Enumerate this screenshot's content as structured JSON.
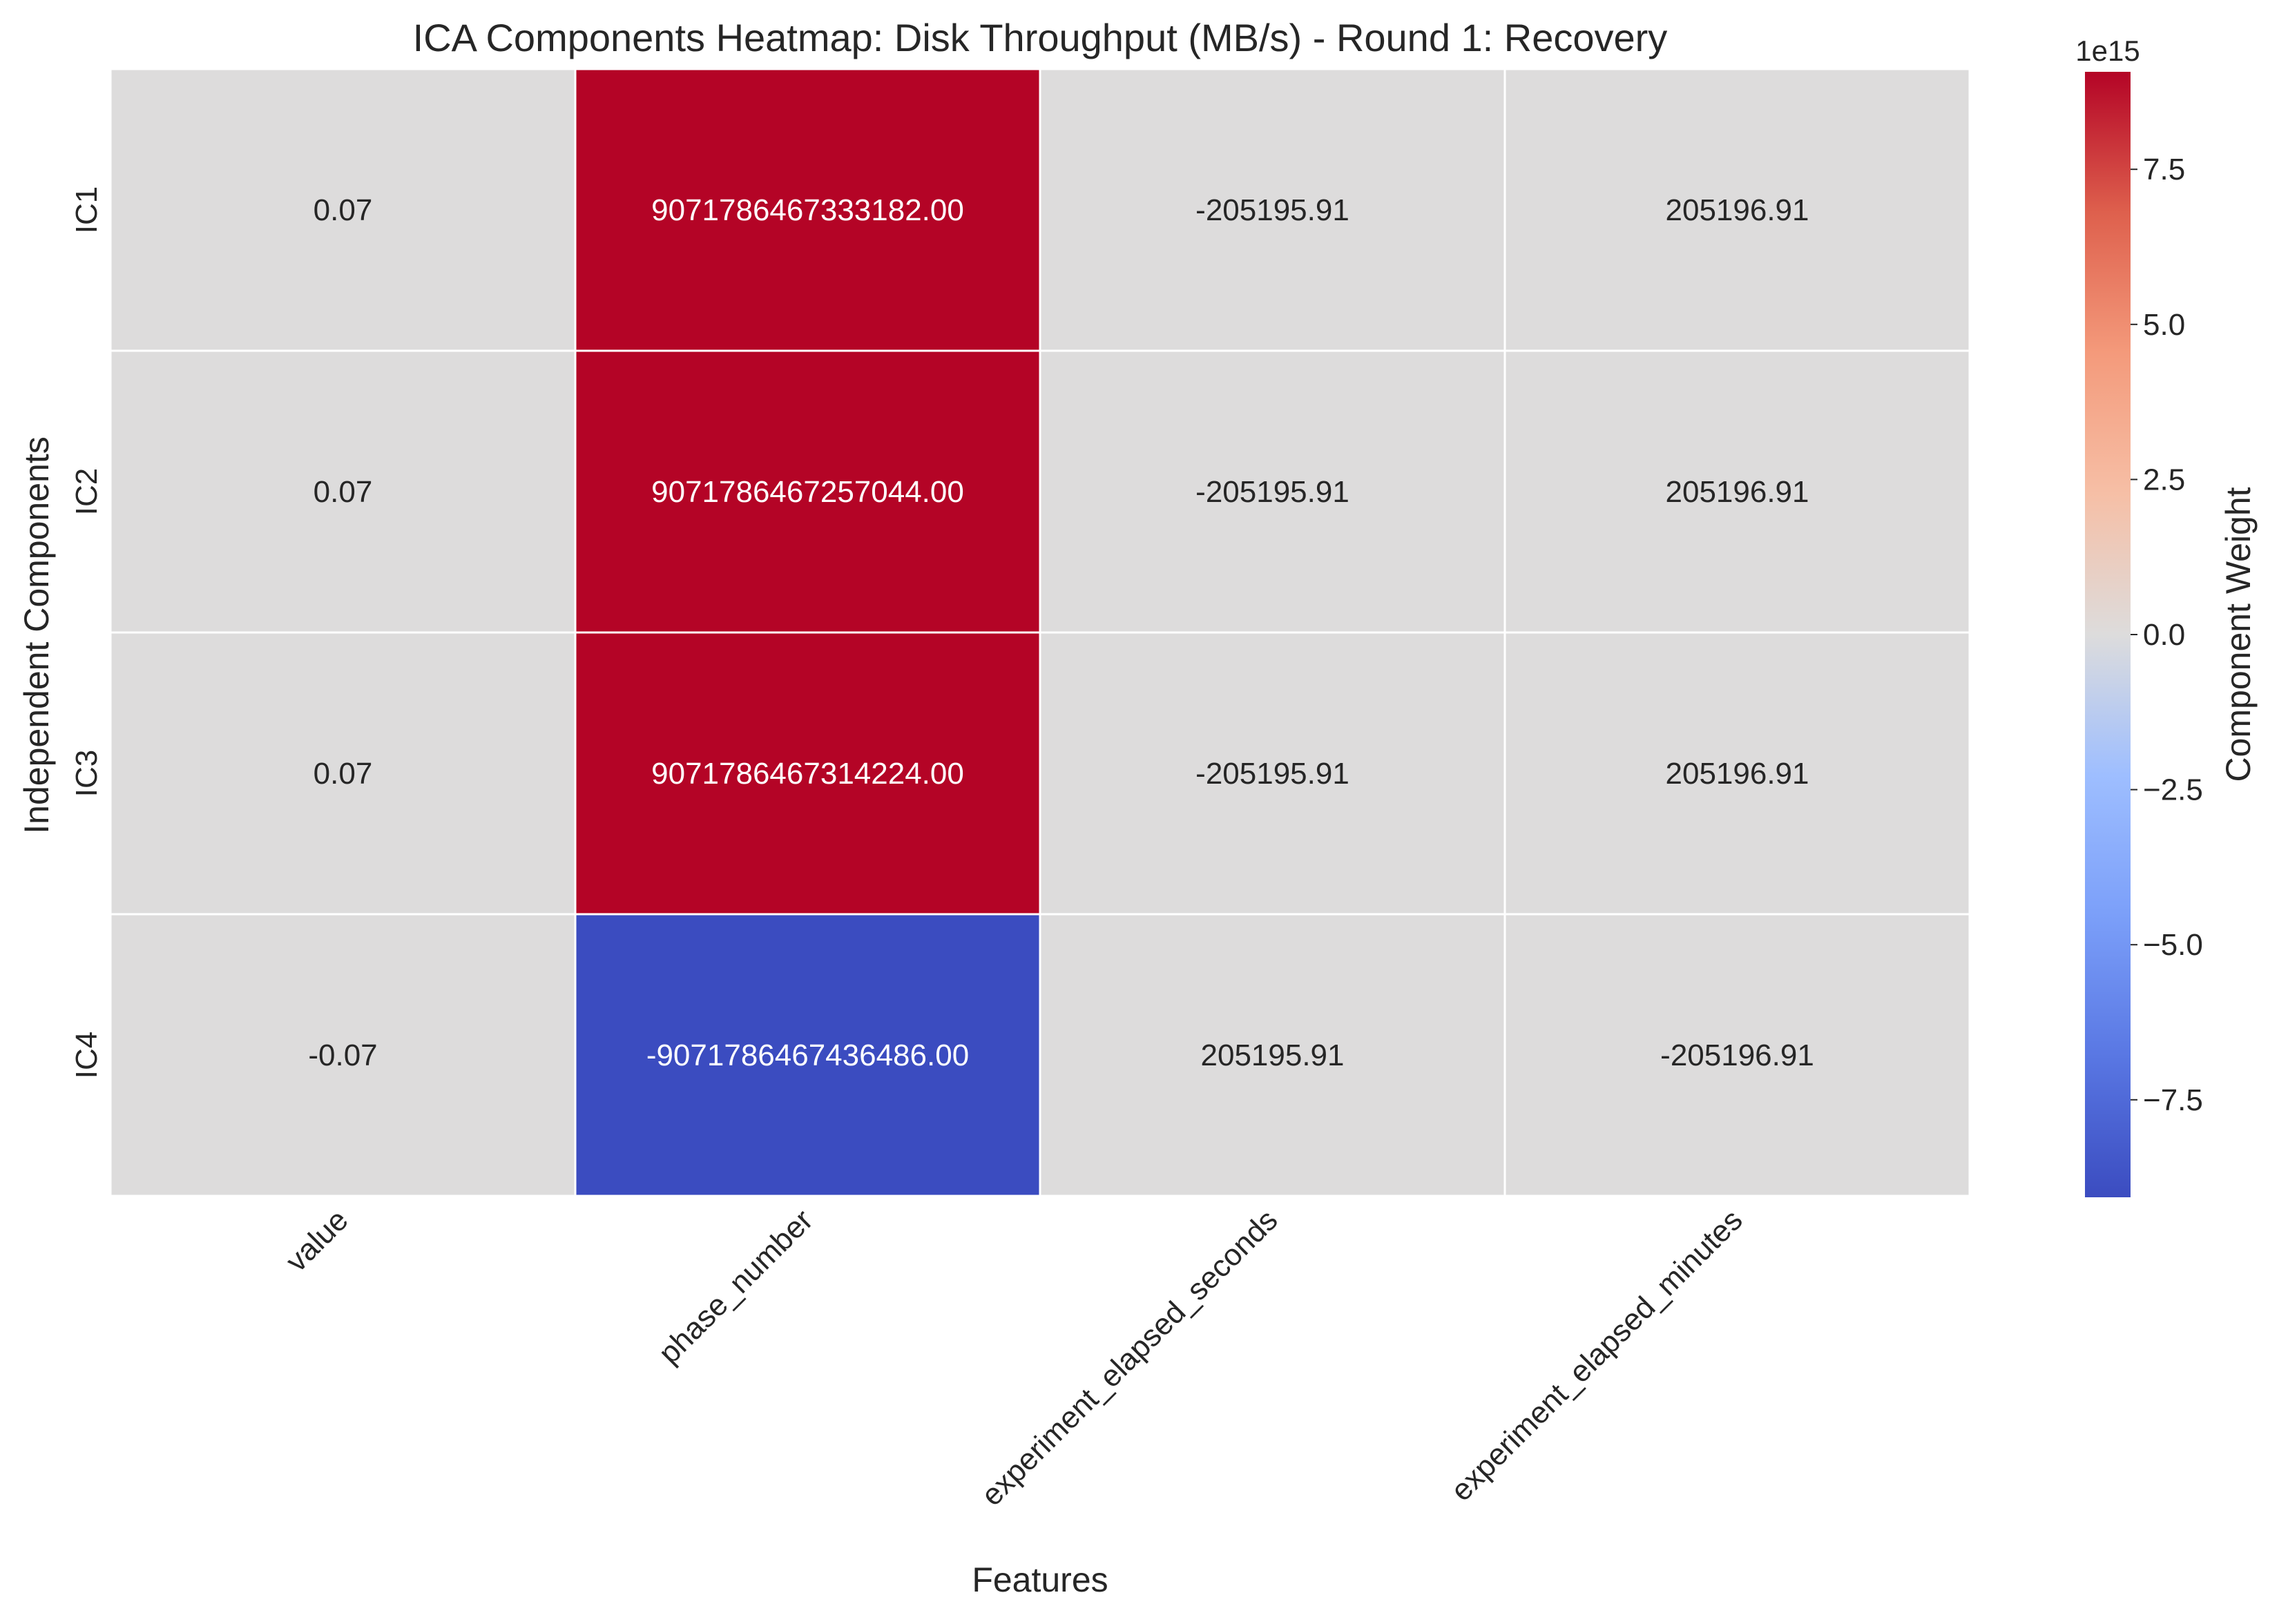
{
  "chart_data": {
    "type": "heatmap",
    "title": "ICA Components Heatmap: Disk Throughput (MB/s) - Round 1: Recovery",
    "xlabel": "Features",
    "ylabel": "Independent Components",
    "colorbar_label": "Component Weight",
    "colorbar_offset_text": "1e15",
    "colorbar_ticks": [
      {
        "value": 7.5,
        "label": "7.5"
      },
      {
        "value": 5.0,
        "label": "5.0"
      },
      {
        "value": 2.5,
        "label": "2.5"
      },
      {
        "value": 0.0,
        "label": "0.0"
      },
      {
        "value": -2.5,
        "label": "−2.5"
      },
      {
        "value": -5.0,
        "label": "−5.0"
      },
      {
        "value": -7.5,
        "label": "−7.5"
      }
    ],
    "colorbar_range": [
      -9.0718,
      9.0718
    ],
    "colormap": "coolwarm",
    "columns": [
      "value",
      "phase_number",
      "experiment_elapsed_seconds",
      "experiment_elapsed_minutes"
    ],
    "rows": [
      "IC1",
      "IC2",
      "IC3",
      "IC4"
    ],
    "values": [
      [
        0.07,
        9071786467333182.0,
        -205195.91,
        205196.91
      ],
      [
        0.07,
        9071786467257044.0,
        -205195.91,
        205196.91
      ],
      [
        0.07,
        9071786467314224.0,
        -205195.91,
        205196.91
      ],
      [
        -0.07,
        -9071786467436486.0,
        205195.91,
        -205196.91
      ]
    ],
    "labels": [
      [
        "0.07",
        "9071786467333182.00",
        "-205195.91",
        "205196.91"
      ],
      [
        "0.07",
        "9071786467257044.00",
        "-205195.91",
        "205196.91"
      ],
      [
        "0.07",
        "9071786467314224.00",
        "-205195.91",
        "205196.91"
      ],
      [
        "-0.07",
        "-9071786467436486.00",
        "205195.91",
        "-205196.91"
      ]
    ]
  }
}
